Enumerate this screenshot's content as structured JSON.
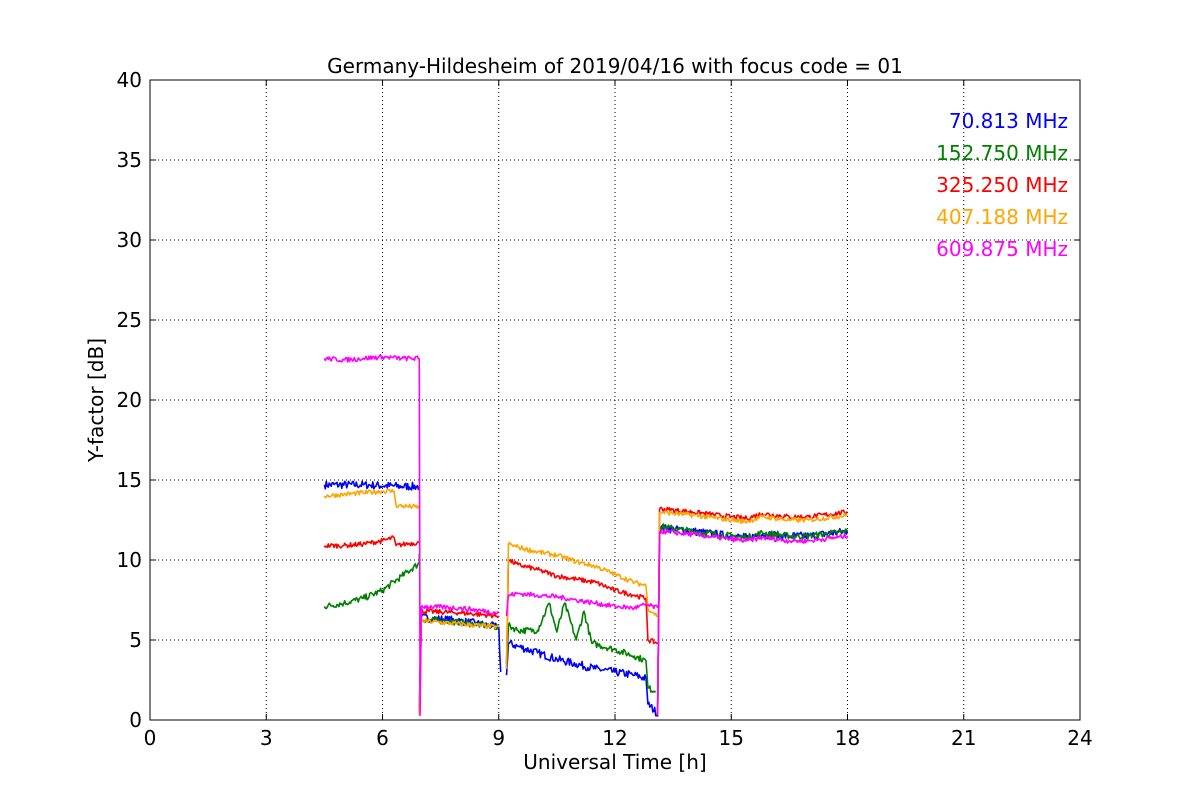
{
  "chart_data": {
    "type": "line",
    "title": "Germany-Hildesheim of 2019/04/16 with focus code = 01",
    "xlabel": "Universal Time [h]",
    "ylabel": "Y-factor [dB]",
    "xlim": [
      0,
      24
    ],
    "ylim": [
      0,
      40
    ],
    "xticks": [
      "0",
      "3",
      "6",
      "9",
      "12",
      "15",
      "18",
      "21",
      "24"
    ],
    "yticks": [
      "0",
      "5",
      "10",
      "15",
      "20",
      "25",
      "30",
      "35",
      "40"
    ],
    "grid": true,
    "legend_position": "top-right",
    "series": [
      {
        "name": "70.813 MHz",
        "color": "#0000ff",
        "noise": 0.25,
        "segments": [
          [
            [
              4.5,
              14.7
            ],
            [
              5.5,
              14.7
            ],
            [
              6.5,
              14.6
            ],
            [
              6.95,
              14.6
            ]
          ],
          [
            [
              6.95,
              0.3
            ],
            [
              7.0,
              6.4
            ]
          ],
          [
            [
              7.0,
              6.4
            ],
            [
              8.0,
              6.2
            ],
            [
              9.0,
              5.8
            ],
            [
              9.05,
              3.0
            ]
          ],
          [
            [
              9.2,
              2.8
            ],
            [
              9.25,
              4.8
            ],
            [
              9.5,
              4.6
            ],
            [
              10.0,
              4.2
            ],
            [
              10.5,
              3.8
            ],
            [
              11.0,
              3.5
            ],
            [
              11.5,
              3.2
            ],
            [
              12.0,
              3.0
            ],
            [
              12.5,
              2.8
            ],
            [
              12.8,
              2.6
            ],
            [
              12.85,
              1.0
            ],
            [
              13.1,
              0.4
            ]
          ],
          [
            [
              13.1,
              0.2
            ],
            [
              13.15,
              11.9
            ]
          ],
          [
            [
              13.15,
              12.0
            ],
            [
              14.0,
              11.8
            ],
            [
              15.0,
              11.5
            ],
            [
              15.4,
              11.4
            ],
            [
              15.8,
              11.6
            ],
            [
              16.5,
              11.5
            ],
            [
              17.0,
              11.5
            ],
            [
              18.0,
              11.8
            ]
          ]
        ]
      },
      {
        "name": "152.750 MHz",
        "color": "#008000",
        "noise": 0.2,
        "segments": [
          [
            [
              4.5,
              7.1
            ],
            [
              5.0,
              7.3
            ],
            [
              5.5,
              7.6
            ],
            [
              6.0,
              8.1
            ],
            [
              6.5,
              9.0
            ],
            [
              6.95,
              9.8
            ],
            [
              6.95,
              10.4
            ]
          ],
          [
            [
              6.95,
              0.3
            ],
            [
              7.0,
              6.3
            ]
          ],
          [
            [
              7.0,
              6.3
            ],
            [
              8.0,
              6.1
            ],
            [
              9.0,
              5.8
            ]
          ],
          [
            [
              9.2,
              3.2
            ],
            [
              9.25,
              5.9
            ],
            [
              9.5,
              5.6
            ],
            [
              10.0,
              5.6
            ],
            [
              10.3,
              7.3
            ],
            [
              10.5,
              5.5
            ],
            [
              10.7,
              7.3
            ],
            [
              11.0,
              5.0
            ],
            [
              11.2,
              6.8
            ],
            [
              11.4,
              4.8
            ],
            [
              12.0,
              4.4
            ],
            [
              12.5,
              4.0
            ],
            [
              12.8,
              3.7
            ],
            [
              12.85,
              2.0
            ],
            [
              13.05,
              1.8
            ]
          ],
          [
            [
              13.1,
              0.3
            ],
            [
              13.15,
              12.0
            ]
          ],
          [
            [
              13.15,
              12.1
            ],
            [
              14.0,
              11.8
            ],
            [
              15.0,
              11.5
            ],
            [
              15.4,
              11.4
            ],
            [
              15.8,
              11.7
            ],
            [
              16.5,
              11.5
            ],
            [
              17.0,
              11.5
            ],
            [
              18.0,
              11.8
            ]
          ]
        ]
      },
      {
        "name": "325.250 MHz",
        "color": "#ff0000",
        "noise": 0.15,
        "segments": [
          [
            [
              4.5,
              10.9
            ],
            [
              5.0,
              10.9
            ],
            [
              5.5,
              11.0
            ],
            [
              6.0,
              11.2
            ],
            [
              6.3,
              11.4
            ],
            [
              6.35,
              10.9
            ],
            [
              6.6,
              11.0
            ],
            [
              6.95,
              11.1
            ]
          ],
          [
            [
              6.95,
              0.3
            ],
            [
              7.0,
              6.8
            ]
          ],
          [
            [
              7.0,
              6.8
            ],
            [
              8.0,
              6.7
            ],
            [
              9.0,
              6.5
            ]
          ],
          [
            [
              9.2,
              3.5
            ],
            [
              9.25,
              10.0
            ],
            [
              9.5,
              9.7
            ],
            [
              10.0,
              9.4
            ],
            [
              10.5,
              9.0
            ],
            [
              11.0,
              8.8
            ],
            [
              11.5,
              8.6
            ],
            [
              12.0,
              8.1
            ],
            [
              12.5,
              7.8
            ],
            [
              12.8,
              7.6
            ],
            [
              12.85,
              5.0
            ],
            [
              13.1,
              4.8
            ]
          ],
          [
            [
              13.1,
              0.3
            ],
            [
              13.15,
              13.2
            ]
          ],
          [
            [
              13.15,
              13.2
            ],
            [
              14.0,
              13.0
            ],
            [
              15.0,
              12.7
            ],
            [
              15.4,
              12.6
            ],
            [
              15.8,
              12.9
            ],
            [
              16.5,
              12.7
            ],
            [
              17.0,
              12.7
            ],
            [
              18.0,
              13.0
            ]
          ]
        ]
      },
      {
        "name": "407.188 MHz",
        "color": "#ffa500",
        "noise": 0.15,
        "segments": [
          [
            [
              4.5,
              14.0
            ],
            [
              5.0,
              14.1
            ],
            [
              5.5,
              14.2
            ],
            [
              6.0,
              14.3
            ],
            [
              6.3,
              14.3
            ],
            [
              6.35,
              13.4
            ],
            [
              6.95,
              13.3
            ]
          ],
          [
            [
              6.95,
              0.3
            ],
            [
              7.0,
              6.2
            ]
          ],
          [
            [
              7.0,
              6.2
            ],
            [
              8.0,
              6.0
            ],
            [
              9.0,
              5.8
            ]
          ],
          [
            [
              9.2,
              3.2
            ],
            [
              9.25,
              11.0
            ],
            [
              9.5,
              10.8
            ],
            [
              10.0,
              10.5
            ],
            [
              10.5,
              10.3
            ],
            [
              11.0,
              9.9
            ],
            [
              11.5,
              9.6
            ],
            [
              12.0,
              9.1
            ],
            [
              12.5,
              8.6
            ],
            [
              12.8,
              8.4
            ],
            [
              12.85,
              7.0
            ],
            [
              13.1,
              6.5
            ]
          ],
          [
            [
              13.1,
              0.3
            ],
            [
              13.15,
              13.0
            ]
          ],
          [
            [
              13.15,
              13.0
            ],
            [
              14.0,
              12.8
            ],
            [
              15.0,
              12.5
            ],
            [
              15.4,
              12.4
            ],
            [
              15.8,
              12.7
            ],
            [
              16.5,
              12.5
            ],
            [
              17.0,
              12.5
            ],
            [
              18.0,
              12.8
            ]
          ]
        ]
      },
      {
        "name": "609.875 MHz",
        "color": "#ff00ff",
        "noise": 0.15,
        "segments": [
          [
            [
              4.5,
              22.6
            ],
            [
              5.0,
              22.5
            ],
            [
              5.5,
              22.6
            ],
            [
              6.0,
              22.7
            ],
            [
              6.5,
              22.6
            ],
            [
              6.95,
              22.6
            ]
          ],
          [
            [
              6.95,
              22.6
            ],
            [
              6.97,
              0.3
            ],
            [
              7.0,
              7.1
            ]
          ],
          [
            [
              7.0,
              7.1
            ],
            [
              8.0,
              7.0
            ],
            [
              9.0,
              6.7
            ]
          ],
          [
            [
              9.2,
              6.5
            ],
            [
              9.25,
              7.8
            ],
            [
              9.5,
              7.9
            ],
            [
              10.0,
              7.8
            ],
            [
              10.5,
              7.7
            ],
            [
              11.0,
              7.5
            ],
            [
              11.5,
              7.3
            ],
            [
              12.0,
              7.1
            ],
            [
              12.5,
              7.0
            ],
            [
              12.8,
              7.2
            ],
            [
              13.1,
              7.0
            ]
          ],
          [
            [
              13.1,
              0.3
            ],
            [
              13.15,
              11.8
            ]
          ],
          [
            [
              13.15,
              11.8
            ],
            [
              14.0,
              11.6
            ],
            [
              15.0,
              11.3
            ],
            [
              15.4,
              11.2
            ],
            [
              15.8,
              11.4
            ],
            [
              16.5,
              11.2
            ],
            [
              17.0,
              11.2
            ],
            [
              18.0,
              11.5
            ]
          ]
        ]
      }
    ]
  }
}
